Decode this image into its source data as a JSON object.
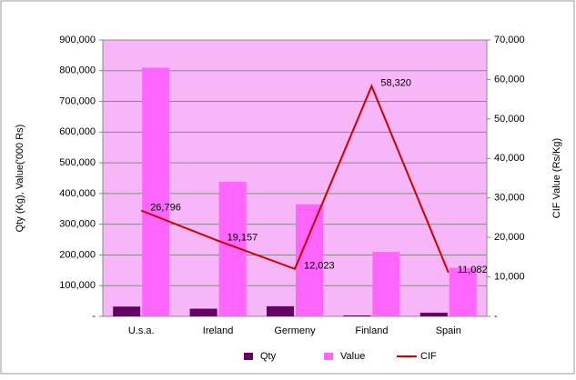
{
  "chart_data": {
    "type": "bar_line",
    "categories": [
      "U.s.a.",
      "Ireland",
      "Germeny",
      "Finland",
      "Spain"
    ],
    "series": [
      {
        "name": "Qty",
        "color": "#660066",
        "values": [
          32000,
          25000,
          33000,
          3000,
          12000
        ]
      },
      {
        "name": "Value",
        "color": "#ff66ff",
        "values": [
          810000,
          438000,
          365000,
          210000,
          158000
        ]
      },
      {
        "name": "CIF",
        "color": "#cc0000",
        "axis": "y2",
        "values": [
          26796,
          19157,
          12023,
          58320,
          11082
        ],
        "value_labels": [
          "26,796",
          "19,157",
          "12,023",
          "58,320",
          "11,082"
        ]
      }
    ],
    "ylabel": "Qty (Kg), Value('000 Rs)",
    "y2label": "CIF Value (Rs/Kg)",
    "ylim": [
      0,
      900000
    ],
    "yticks": [
      {
        "value": 0,
        "label": "-"
      },
      {
        "value": 100000,
        "label": "100,000"
      },
      {
        "value": 200000,
        "label": "200,000"
      },
      {
        "value": 300000,
        "label": "300,000"
      },
      {
        "value": 400000,
        "label": "400,000"
      },
      {
        "value": 500000,
        "label": "500,000"
      },
      {
        "value": 600000,
        "label": "600,000"
      },
      {
        "value": 700000,
        "label": "700,000"
      },
      {
        "value": 800000,
        "label": "800,000"
      },
      {
        "value": 900000,
        "label": "900,000"
      }
    ],
    "y2lim": [
      0,
      70000
    ],
    "y2ticks": [
      {
        "value": 0,
        "label": "-"
      },
      {
        "value": 10000,
        "label": "10,000"
      },
      {
        "value": 20000,
        "label": "20,000"
      },
      {
        "value": 30000,
        "label": "30,000"
      },
      {
        "value": 40000,
        "label": "40,000"
      },
      {
        "value": 50000,
        "label": "50,000"
      },
      {
        "value": 60000,
        "label": "60,000"
      },
      {
        "value": 70000,
        "label": "70,000"
      }
    ],
    "grid": true,
    "legend": "bottom",
    "background": "#f7b6f7"
  }
}
